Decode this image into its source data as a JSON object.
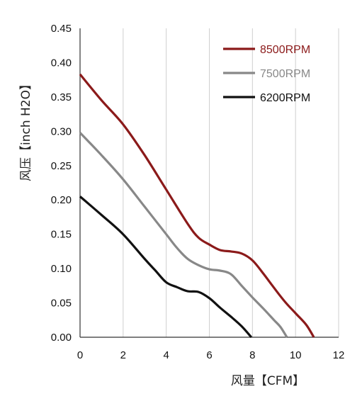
{
  "chart_data": {
    "type": "line",
    "xlabel": "风量【CFM】",
    "ylabel": "风压【inch H2O】",
    "xlim": [
      0,
      12
    ],
    "ylim": [
      0,
      0.45
    ],
    "x_ticks": [
      "0",
      "2",
      "4",
      "6",
      "8",
      "10",
      "12"
    ],
    "y_ticks": [
      "0.00",
      "0.05",
      "0.10",
      "0.15",
      "0.20",
      "0.25",
      "0.30",
      "0.35",
      "0.40",
      "0.45"
    ],
    "grid": "vertical",
    "legend": "top-right",
    "series": [
      {
        "name": "8500RPM",
        "color": "#8b1a1a",
        "points": [
          [
            0,
            0.383
          ],
          [
            1,
            0.345
          ],
          [
            2,
            0.31
          ],
          [
            3,
            0.265
          ],
          [
            4,
            0.215
          ],
          [
            5,
            0.165
          ],
          [
            5.5,
            0.145
          ],
          [
            6,
            0.135
          ],
          [
            6.5,
            0.127
          ],
          [
            7,
            0.125
          ],
          [
            7.5,
            0.122
          ],
          [
            8,
            0.112
          ],
          [
            8.5,
            0.093
          ],
          [
            9,
            0.072
          ],
          [
            9.5,
            0.052
          ],
          [
            10,
            0.035
          ],
          [
            10.5,
            0.018
          ],
          [
            10.85,
            0.0
          ]
        ]
      },
      {
        "name": "7500RPM",
        "color": "#888888",
        "points": [
          [
            0,
            0.298
          ],
          [
            1,
            0.265
          ],
          [
            2,
            0.23
          ],
          [
            3,
            0.19
          ],
          [
            4,
            0.15
          ],
          [
            4.5,
            0.13
          ],
          [
            5,
            0.114
          ],
          [
            5.5,
            0.105
          ],
          [
            6,
            0.099
          ],
          [
            6.5,
            0.097
          ],
          [
            7,
            0.092
          ],
          [
            7.5,
            0.075
          ],
          [
            8,
            0.058
          ],
          [
            8.5,
            0.042
          ],
          [
            9,
            0.025
          ],
          [
            9.3,
            0.015
          ],
          [
            9.6,
            0.0
          ]
        ]
      },
      {
        "name": "6200RPM",
        "color": "#111111",
        "points": [
          [
            0,
            0.205
          ],
          [
            1,
            0.178
          ],
          [
            2,
            0.15
          ],
          [
            3,
            0.114
          ],
          [
            3.5,
            0.097
          ],
          [
            4,
            0.08
          ],
          [
            4.5,
            0.073
          ],
          [
            5,
            0.067
          ],
          [
            5.5,
            0.066
          ],
          [
            6,
            0.057
          ],
          [
            6.5,
            0.043
          ],
          [
            7,
            0.03
          ],
          [
            7.5,
            0.016
          ],
          [
            7.95,
            0.0
          ]
        ]
      }
    ]
  }
}
